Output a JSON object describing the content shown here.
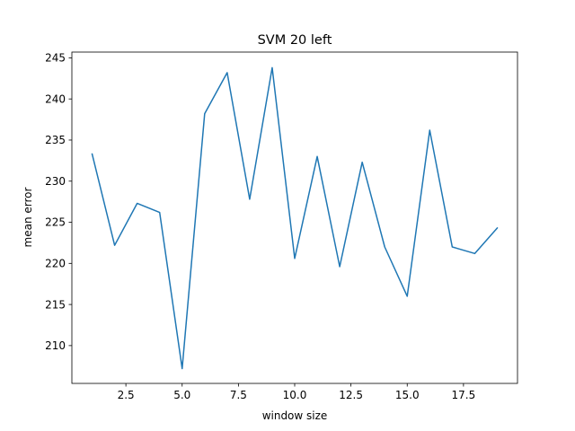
{
  "chart_data": {
    "type": "line",
    "title": "SVM 20 left",
    "xlabel": "window size",
    "ylabel": "mean error",
    "xlim": [
      0.1,
      19.9
    ],
    "ylim": [
      205.4,
      245.7
    ],
    "xticks": [
      2.5,
      5.0,
      7.5,
      10.0,
      12.5,
      15.0,
      17.5
    ],
    "xtick_labels": [
      "2.5",
      "5.0",
      "7.5",
      "10.0",
      "12.5",
      "15.0",
      "17.5"
    ],
    "yticks": [
      210,
      215,
      220,
      225,
      230,
      235,
      240,
      245
    ],
    "ytick_labels": [
      "210",
      "215",
      "220",
      "225",
      "230",
      "235",
      "240",
      "245"
    ],
    "grid": false,
    "series": [
      {
        "color": "#1f77b4",
        "x": [
          1,
          2,
          3,
          4,
          5,
          6,
          7,
          8,
          9,
          10,
          11,
          12,
          13,
          14,
          15,
          16,
          17,
          18,
          19
        ],
        "y": [
          233.3,
          222.2,
          227.3,
          226.2,
          207.2,
          238.2,
          243.2,
          227.8,
          243.8,
          220.6,
          233.0,
          219.6,
          232.3,
          222.0,
          216.0,
          236.2,
          222.0,
          221.2,
          224.3
        ]
      }
    ]
  }
}
